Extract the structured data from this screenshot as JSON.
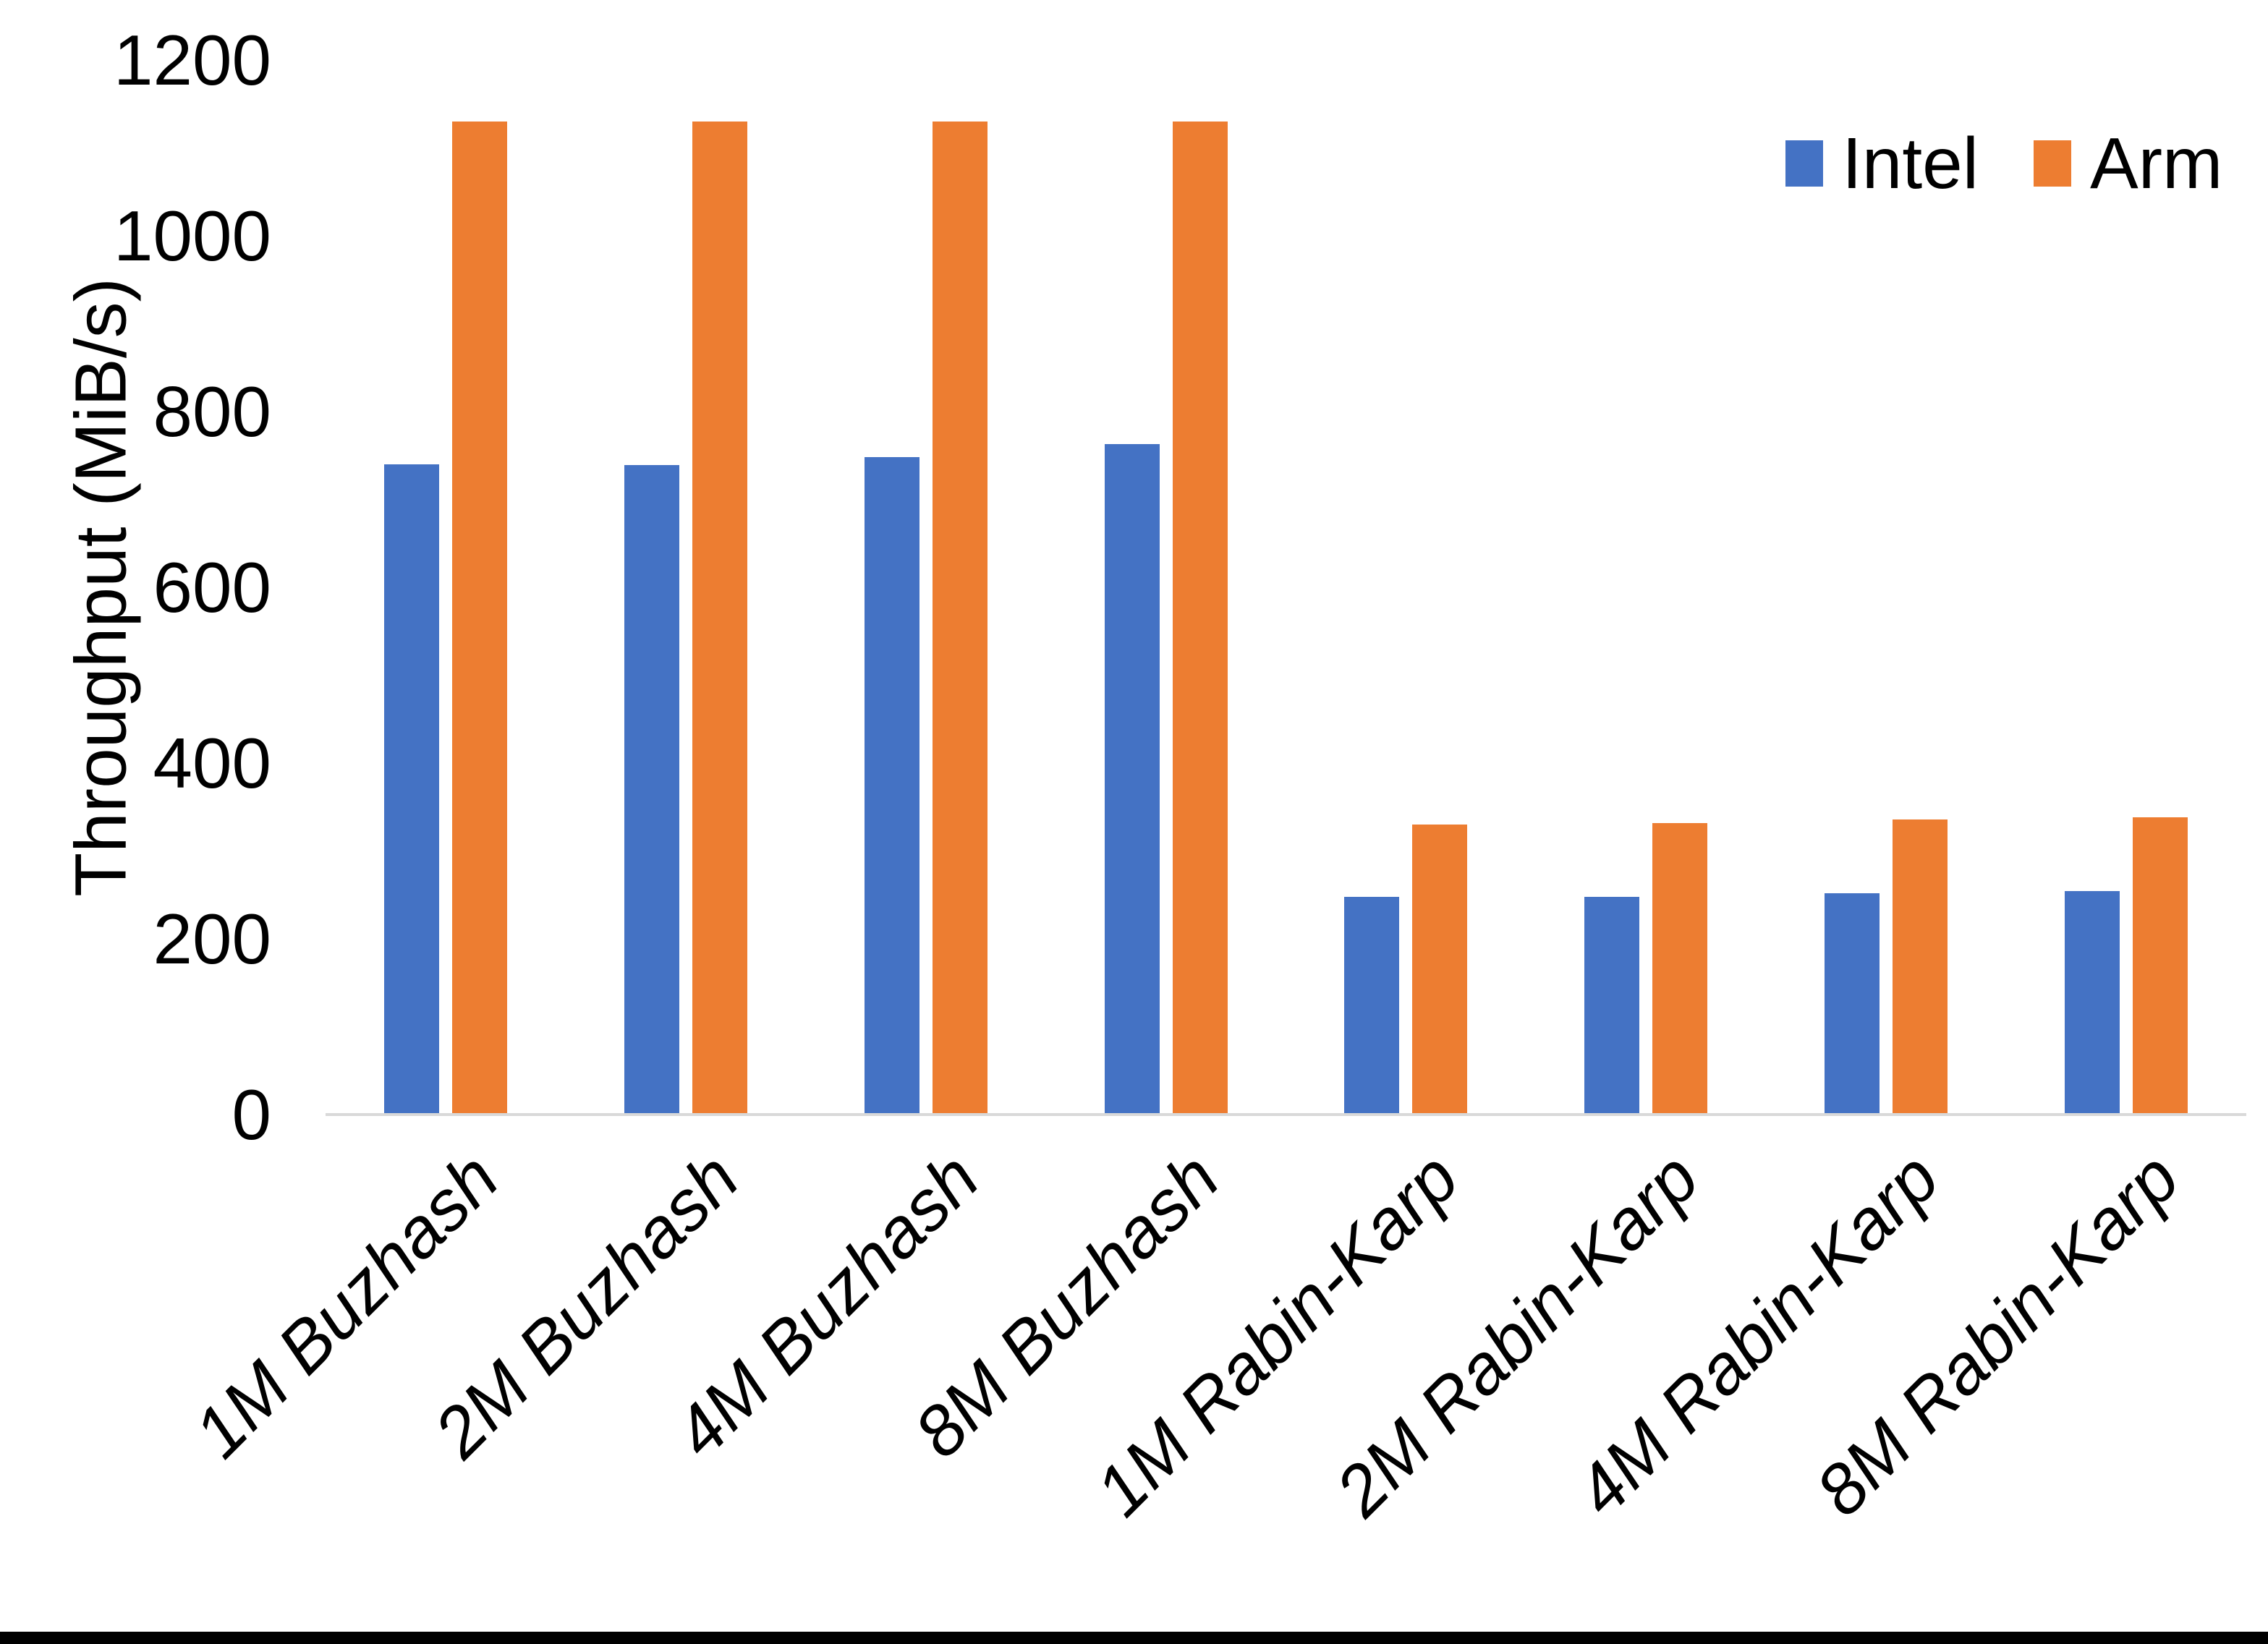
{
  "chart_data": {
    "type": "bar",
    "title": "",
    "xlabel": "",
    "ylabel": "Throughput (MiB/s)",
    "ylim": [
      0,
      1200
    ],
    "yticks": [
      0,
      200,
      400,
      600,
      800,
      1000,
      1200
    ],
    "grid": false,
    "legend_position": "top-right",
    "categories": [
      "1M Buzhash",
      "2M Buzhash",
      "4M Buzhash",
      "8M Buzhash",
      "1M Rabin-Karp",
      "2M Rabin-Karp",
      "4M Rabin-Karp",
      "8M Rabin-Karp"
    ],
    "series": [
      {
        "name": "Intel",
        "color": "#4472C4",
        "values": [
          740,
          739,
          748,
          763,
          248,
          248,
          252,
          254
        ]
      },
      {
        "name": "Arm",
        "color": "#ED7D31",
        "values": [
          1130,
          1130,
          1130,
          1130,
          330,
          332,
          336,
          338
        ]
      }
    ]
  },
  "legend": {
    "items": [
      {
        "label": "Intel",
        "color": "#4472C4"
      },
      {
        "label": "Arm",
        "color": "#ED7D31"
      }
    ]
  },
  "colors": {
    "background": "#FFFFFF",
    "axis_line": "#D9D9D9",
    "text": "#000000",
    "bottom_edge": "#000000"
  }
}
